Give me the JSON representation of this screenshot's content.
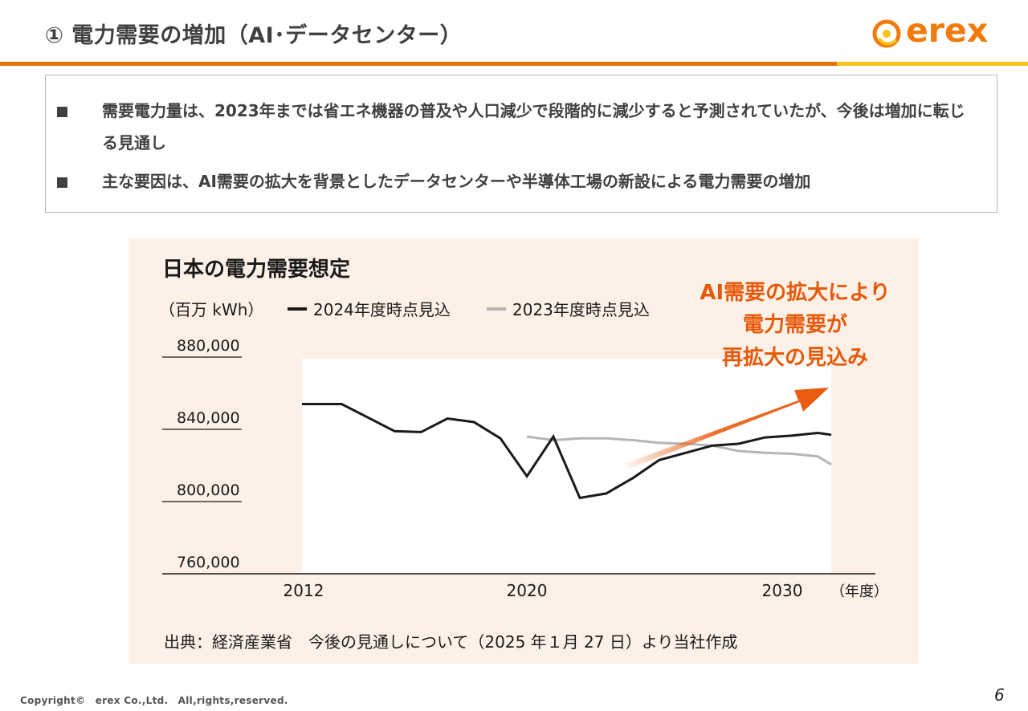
{
  "slide": {
    "title": "① 電力需要の増加（AI･データセンター）",
    "logo_text": "erex",
    "bullets": [
      "需要電力量は、2023年までは省エネ機器の普及や人口減少で段階的に減少すると予測されていたが、今後は増加に転じる見通し",
      "主な要因は、AI需要の拡大を背景としたデータセンターや半導体工場の新設による電力需要の増加"
    ],
    "footer": "Copyright©　erex Co.,Ltd.　All,rights,reserved.",
    "page_number": "6",
    "colors": {
      "accent": "#e8700a",
      "accent2": "#f6c21a",
      "panel": "#fdf1e7",
      "callout": "#e8580a"
    }
  },
  "chart_data": {
    "type": "line",
    "title": "日本の電力需要想定",
    "unit_label": "（百万 kWh）",
    "x_unit_label": "（年度）",
    "x_ticks": [
      "2012",
      "2020",
      "2030"
    ],
    "y_ticks": [
      "880,000",
      "840,000",
      "800,000",
      "760,000"
    ],
    "ylim": [
      760000,
      880000
    ],
    "xlim": [
      2012,
      2033
    ],
    "series": [
      {
        "name": "2024年度時点見込",
        "color": "#1a1a1a",
        "x": [
          2012,
          2013.5,
          2015.5,
          2016.5,
          2017.5,
          2018.5,
          2019.5,
          2020.5,
          2021.5,
          2022.5,
          2023.5,
          2024.5,
          2025.5,
          2026.5,
          2027.5,
          2028.5,
          2029.5,
          2030.5,
          2031.5,
          2032
        ],
        "values": [
          854000,
          854000,
          839000,
          838500,
          846000,
          844000,
          835000,
          814000,
          836000,
          802000,
          804500,
          813000,
          823000,
          827000,
          831000,
          832000,
          835500,
          836500,
          838000,
          837000
        ]
      },
      {
        "name": "2023年度時点見込",
        "color": "#b5b5b5",
        "x": [
          2020.5,
          2021.5,
          2022.5,
          2023.5,
          2024.5,
          2025.5,
          2026.5,
          2027.5,
          2028.5,
          2029.5,
          2030.5,
          2031.5,
          2032
        ],
        "values": [
          836000,
          834000,
          835000,
          835000,
          834000,
          832500,
          832000,
          831000,
          828000,
          827000,
          826500,
          825000,
          820500
        ]
      }
    ],
    "annotation": [
      "AI需要の拡大により",
      "電力需要が",
      "再拡大の見込み"
    ],
    "source": "出典：経済産業省　今後の見通しについて（2025 年１月 27 日）より当社作成"
  }
}
